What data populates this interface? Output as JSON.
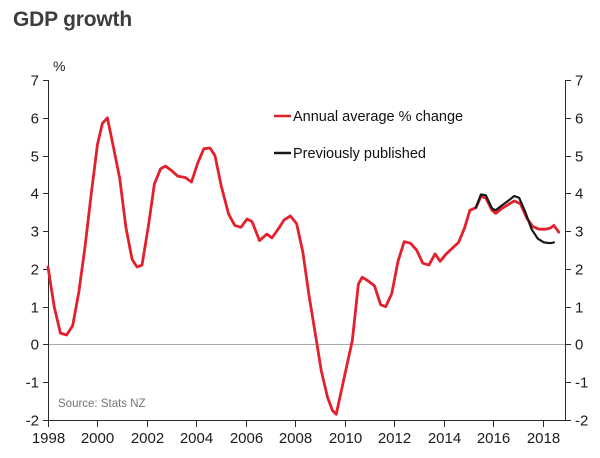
{
  "page": {
    "title": "GDP growth"
  },
  "chart_data": {
    "type": "line",
    "title": "GDP growth",
    "ylabel": "%",
    "xlabel": "",
    "ylim": [
      -2,
      7
    ],
    "xlim": [
      1998,
      2018.9
    ],
    "y_ticks": [
      7,
      6,
      5,
      4,
      3,
      2,
      1,
      0,
      -1,
      -2
    ],
    "x_ticks": [
      1998,
      2000,
      2002,
      2004,
      2006,
      2008,
      2010,
      2012,
      2014,
      2016,
      2018
    ],
    "grid": "zero line only",
    "legend_position": "inside top-right",
    "source": "Source: Stats NZ",
    "axis_color": "#2a2a2a",
    "zero_line_color": "#aaaaaa",
    "series": [
      {
        "name": "Annual average % change",
        "color": "#e4202c",
        "points": [
          [
            1998.0,
            2.05
          ],
          [
            1998.25,
            1.0
          ],
          [
            1998.5,
            0.3
          ],
          [
            1998.75,
            0.25
          ],
          [
            1999.0,
            0.5
          ],
          [
            1999.25,
            1.4
          ],
          [
            1999.5,
            2.6
          ],
          [
            1999.75,
            4.0
          ],
          [
            2000.0,
            5.3
          ],
          [
            2000.2,
            5.85
          ],
          [
            2000.4,
            6.0
          ],
          [
            2000.65,
            5.2
          ],
          [
            2000.9,
            4.4
          ],
          [
            2001.15,
            3.1
          ],
          [
            2001.4,
            2.25
          ],
          [
            2001.6,
            2.05
          ],
          [
            2001.8,
            2.1
          ],
          [
            2002.05,
            3.1
          ],
          [
            2002.3,
            4.25
          ],
          [
            2002.55,
            4.65
          ],
          [
            2002.75,
            4.72
          ],
          [
            2003.0,
            4.6
          ],
          [
            2003.25,
            4.45
          ],
          [
            2003.55,
            4.42
          ],
          [
            2003.8,
            4.3
          ],
          [
            2004.05,
            4.8
          ],
          [
            2004.3,
            5.18
          ],
          [
            2004.55,
            5.2
          ],
          [
            2004.75,
            5.0
          ],
          [
            2005.0,
            4.2
          ],
          [
            2005.3,
            3.45
          ],
          [
            2005.55,
            3.15
          ],
          [
            2005.8,
            3.1
          ],
          [
            2006.05,
            3.32
          ],
          [
            2006.25,
            3.25
          ],
          [
            2006.55,
            2.75
          ],
          [
            2006.85,
            2.92
          ],
          [
            2007.05,
            2.82
          ],
          [
            2007.3,
            3.05
          ],
          [
            2007.55,
            3.3
          ],
          [
            2007.8,
            3.4
          ],
          [
            2008.05,
            3.2
          ],
          [
            2008.3,
            2.45
          ],
          [
            2008.55,
            1.3
          ],
          [
            2008.8,
            0.3
          ],
          [
            2009.05,
            -0.7
          ],
          [
            2009.3,
            -1.4
          ],
          [
            2009.5,
            -1.75
          ],
          [
            2009.65,
            -1.85
          ],
          [
            2009.9,
            -1.1
          ],
          [
            2010.1,
            -0.5
          ],
          [
            2010.3,
            0.1
          ],
          [
            2010.55,
            1.6
          ],
          [
            2010.7,
            1.78
          ],
          [
            2010.95,
            1.68
          ],
          [
            2011.2,
            1.55
          ],
          [
            2011.45,
            1.05
          ],
          [
            2011.65,
            1.0
          ],
          [
            2011.9,
            1.35
          ],
          [
            2012.15,
            2.2
          ],
          [
            2012.4,
            2.72
          ],
          [
            2012.65,
            2.68
          ],
          [
            2012.9,
            2.5
          ],
          [
            2013.15,
            2.15
          ],
          [
            2013.4,
            2.1
          ],
          [
            2013.65,
            2.4
          ],
          [
            2013.85,
            2.2
          ],
          [
            2014.1,
            2.4
          ],
          [
            2014.35,
            2.55
          ],
          [
            2014.6,
            2.7
          ],
          [
            2014.85,
            3.1
          ],
          [
            2015.05,
            3.55
          ],
          [
            2015.3,
            3.62
          ],
          [
            2015.5,
            3.92
          ],
          [
            2015.7,
            3.88
          ],
          [
            2015.95,
            3.55
          ],
          [
            2016.1,
            3.47
          ],
          [
            2016.35,
            3.6
          ],
          [
            2016.6,
            3.7
          ],
          [
            2016.85,
            3.8
          ],
          [
            2017.1,
            3.72
          ],
          [
            2017.35,
            3.35
          ],
          [
            2017.6,
            3.12
          ],
          [
            2017.85,
            3.05
          ],
          [
            2018.1,
            3.05
          ],
          [
            2018.3,
            3.08
          ],
          [
            2018.45,
            3.15
          ],
          [
            2018.65,
            2.97
          ]
        ]
      },
      {
        "name": "Previously published",
        "color": "#191919",
        "points": [
          [
            2015.3,
            3.62
          ],
          [
            2015.5,
            3.97
          ],
          [
            2015.7,
            3.95
          ],
          [
            2015.95,
            3.6
          ],
          [
            2016.1,
            3.55
          ],
          [
            2016.35,
            3.68
          ],
          [
            2016.6,
            3.8
          ],
          [
            2016.85,
            3.93
          ],
          [
            2017.05,
            3.88
          ],
          [
            2017.3,
            3.5
          ],
          [
            2017.55,
            3.05
          ],
          [
            2017.8,
            2.8
          ],
          [
            2018.05,
            2.7
          ],
          [
            2018.3,
            2.68
          ],
          [
            2018.45,
            2.7
          ]
        ]
      }
    ]
  }
}
